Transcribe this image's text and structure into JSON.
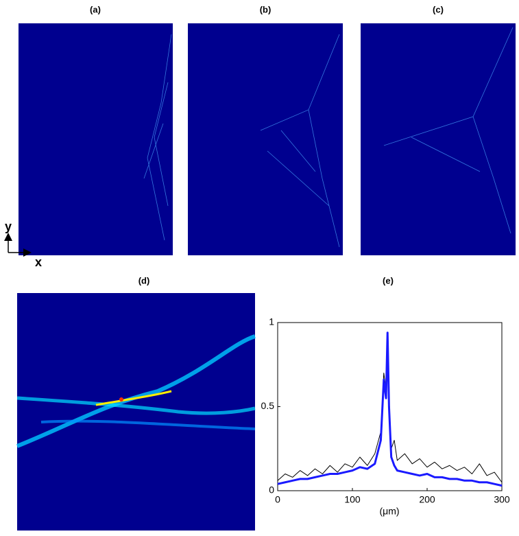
{
  "panel_labels": [
    "(a)",
    "(b)",
    "(c)",
    "(d)",
    "(e)"
  ],
  "axis_arrows": {
    "y": "y",
    "x": "x"
  },
  "chart_data": {
    "type": "line",
    "xlabel": "(μm)",
    "x": [
      0,
      10,
      20,
      30,
      40,
      50,
      60,
      70,
      80,
      90,
      100,
      110,
      120,
      130,
      138,
      142,
      145,
      147,
      149,
      152,
      156,
      160,
      170,
      180,
      190,
      200,
      210,
      220,
      230,
      240,
      250,
      260,
      270,
      280,
      290,
      300
    ],
    "series": [
      {
        "color": "#000000",
        "values": [
          0.06,
          0.1,
          0.08,
          0.12,
          0.09,
          0.13,
          0.1,
          0.15,
          0.11,
          0.16,
          0.14,
          0.2,
          0.15,
          0.22,
          0.35,
          0.7,
          0.6,
          0.9,
          0.45,
          0.25,
          0.3,
          0.18,
          0.22,
          0.16,
          0.19,
          0.14,
          0.17,
          0.13,
          0.15,
          0.12,
          0.14,
          0.1,
          0.16,
          0.09,
          0.11,
          0.05
        ]
      },
      {
        "color": "#1a1aff",
        "values": [
          0.04,
          0.05,
          0.06,
          0.07,
          0.07,
          0.08,
          0.09,
          0.1,
          0.1,
          0.11,
          0.12,
          0.14,
          0.13,
          0.16,
          0.3,
          0.66,
          0.55,
          0.94,
          0.5,
          0.2,
          0.15,
          0.12,
          0.11,
          0.1,
          0.09,
          0.1,
          0.08,
          0.08,
          0.07,
          0.07,
          0.06,
          0.06,
          0.05,
          0.05,
          0.04,
          0.03
        ]
      }
    ],
    "xlim": [
      0,
      300
    ],
    "ylim": [
      0,
      1
    ],
    "xticks": [
      0,
      100,
      200,
      300
    ],
    "yticks": [
      0,
      0.5,
      1
    ]
  }
}
